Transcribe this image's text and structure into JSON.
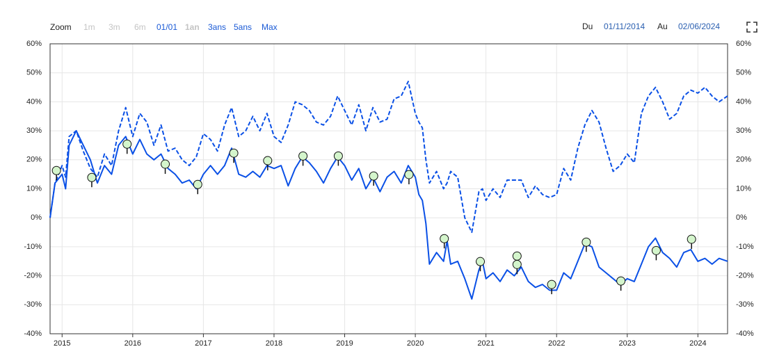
{
  "range_selector": {
    "label": "Zoom",
    "buttons": [
      {
        "label": "1m",
        "enabled": false
      },
      {
        "label": "3m",
        "enabled": false
      },
      {
        "label": "6m",
        "enabled": false
      },
      {
        "label": "01/01",
        "enabled": true
      },
      {
        "label": "1an",
        "enabled": false
      },
      {
        "label": "3ans",
        "enabled": true
      },
      {
        "label": "5ans",
        "enabled": true
      },
      {
        "label": "Max",
        "enabled": true
      }
    ]
  },
  "date_range": {
    "from_label": "Du",
    "from": "01/11/2014",
    "to_label": "Au",
    "to": "02/06/2024"
  },
  "chart_data": {
    "type": "line",
    "grid": true,
    "x": [
      2014.83,
      2014.9,
      2015.0,
      2015.05,
      2015.1,
      2015.2,
      2015.3,
      2015.4,
      2015.5,
      2015.6,
      2015.7,
      2015.8,
      2015.9,
      2016.0,
      2016.1,
      2016.2,
      2016.3,
      2016.4,
      2016.5,
      2016.6,
      2016.7,
      2016.8,
      2016.9,
      2017.0,
      2017.1,
      2017.2,
      2017.3,
      2017.4,
      2017.5,
      2017.6,
      2017.7,
      2017.8,
      2017.9,
      2018.0,
      2018.1,
      2018.2,
      2018.3,
      2018.4,
      2018.5,
      2018.6,
      2018.7,
      2018.8,
      2018.9,
      2019.0,
      2019.1,
      2019.2,
      2019.3,
      2019.4,
      2019.5,
      2019.6,
      2019.7,
      2019.8,
      2019.9,
      2020.0,
      2020.05,
      2020.1,
      2020.15,
      2020.2,
      2020.3,
      2020.4,
      2020.45,
      2020.5,
      2020.6,
      2020.7,
      2020.8,
      2020.9,
      2020.95,
      2021.0,
      2021.1,
      2021.2,
      2021.3,
      2021.4,
      2021.5,
      2021.6,
      2021.7,
      2021.8,
      2021.9,
      2022.0,
      2022.1,
      2022.2,
      2022.3,
      2022.4,
      2022.5,
      2022.6,
      2022.7,
      2022.8,
      2022.9,
      2023.0,
      2023.1,
      2023.2,
      2023.3,
      2023.4,
      2023.5,
      2023.6,
      2023.7,
      2023.8,
      2023.9,
      2024.0,
      2024.1,
      2024.2,
      2024.3,
      2024.42
    ],
    "series": [
      {
        "color": "#0a50e6",
        "dash": false,
        "values": [
          0,
          12,
          15,
          10,
          25,
          30,
          25,
          20,
          12,
          18,
          15,
          25,
          28,
          22,
          27,
          22,
          20,
          22,
          17,
          15,
          12,
          13,
          10,
          15,
          18,
          15,
          18,
          24,
          15,
          14,
          16,
          14,
          18,
          17,
          18,
          11,
          17,
          21,
          19,
          16,
          12,
          17,
          21,
          18,
          13,
          17,
          10,
          14,
          9,
          14,
          16,
          12,
          18,
          14,
          8,
          6,
          -2,
          -16,
          -12,
          -15,
          -8,
          -16,
          -15,
          -21,
          -28,
          -18,
          -15,
          -21,
          -19,
          -22,
          -18,
          -20,
          -17,
          -22,
          -24,
          -23,
          -25,
          -25,
          -19,
          -21,
          -15,
          -9,
          -10,
          -17,
          -19,
          -21,
          -23,
          -21,
          -22,
          -16,
          -10,
          -7,
          -12,
          -14,
          -17,
          -12,
          -11,
          -15,
          -14,
          -16,
          -14,
          -15
        ]
      },
      {
        "color": "#0a50e6",
        "dash": true,
        "values": [
          0,
          12,
          18,
          14,
          28,
          30,
          23,
          17,
          14,
          22,
          18,
          30,
          38,
          28,
          36,
          33,
          25,
          32,
          23,
          24,
          20,
          18,
          21,
          29,
          27,
          23,
          32,
          38,
          28,
          30,
          35,
          30,
          36,
          28,
          26,
          32,
          40,
          39,
          37,
          33,
          32,
          35,
          42,
          37,
          32,
          39,
          30,
          38,
          33,
          34,
          41,
          42,
          47,
          36,
          33,
          31,
          20,
          12,
          16,
          10,
          12,
          16,
          14,
          0,
          -5,
          9,
          10,
          6,
          10,
          7,
          13,
          13,
          13,
          7,
          11,
          8,
          7,
          8,
          17,
          13,
          24,
          32,
          37,
          33,
          24,
          16,
          18,
          22,
          19,
          36,
          42,
          45,
          40,
          34,
          36,
          42,
          44,
          43,
          45,
          42,
          40,
          42
        ]
      }
    ],
    "flags": {
      "color": "#d4f5cc",
      "x": [
        2014.92,
        2015.42,
        2015.92,
        2016.46,
        2016.92,
        2017.43,
        2017.91,
        2018.41,
        2018.91,
        2019.41,
        2019.91,
        2020.41,
        2020.92,
        2021.44,
        2021.44,
        2021.93,
        2022.42,
        2022.91,
        2023.41,
        2023.91
      ],
      "values": [
        16.3,
        13.9,
        25.4,
        18.5,
        11.5,
        22.3,
        19.7,
        21.3,
        21.3,
        14.4,
        14.9,
        -7.2,
        -15.1,
        -13.2,
        -16.1,
        -23.0,
        -8.4,
        -21.8,
        -11.3,
        -7.4
      ]
    },
    "xlim": [
      2014.83,
      2024.42
    ],
    "xticks": [
      2015,
      2016,
      2017,
      2018,
      2019,
      2020,
      2021,
      2022,
      2023,
      2024
    ],
    "ylim": [
      -40,
      60
    ],
    "yticks": [
      {
        "value": -40,
        "label": "-40%"
      },
      {
        "value": -30,
        "label": "-30%"
      },
      {
        "value": -20,
        "label": "-20%"
      },
      {
        "value": -10,
        "label": "-10%"
      },
      {
        "value": 0,
        "label": "0%"
      },
      {
        "value": 10,
        "label": "10%"
      },
      {
        "value": 20,
        "label": "20%"
      },
      {
        "value": 30,
        "label": "30%"
      },
      {
        "value": 40,
        "label": "40%"
      },
      {
        "value": 50,
        "label": "50%"
      },
      {
        "value": 60,
        "label": "60%"
      }
    ]
  }
}
